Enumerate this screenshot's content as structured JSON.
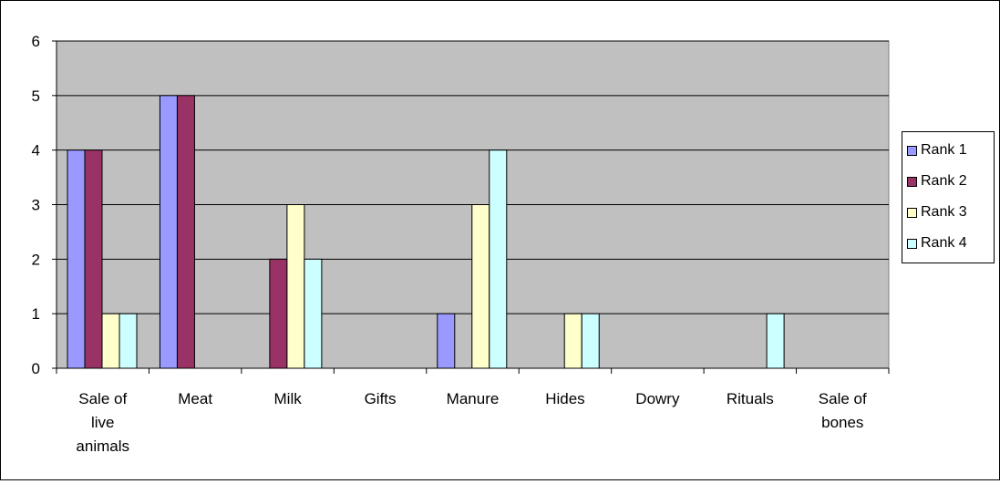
{
  "chart_data": {
    "type": "bar",
    "categories": [
      [
        "Sale of",
        "live",
        "animals"
      ],
      [
        "Meat"
      ],
      [
        "Milk"
      ],
      [
        "Gifts"
      ],
      [
        "Manure"
      ],
      [
        "Hides"
      ],
      [
        "Dowry"
      ],
      [
        "Rituals"
      ],
      [
        "Sale of",
        "bones"
      ]
    ],
    "series": [
      {
        "name": "Rank 1",
        "color": "#9999ff",
        "values": [
          4,
          5,
          0,
          0,
          1,
          0,
          0,
          0,
          0
        ]
      },
      {
        "name": "Rank 2",
        "color": "#993366",
        "values": [
          4,
          5,
          2,
          0,
          0,
          0,
          0,
          0,
          0
        ]
      },
      {
        "name": "Rank 3",
        "color": "#ffffcc",
        "values": [
          1,
          0,
          3,
          0,
          3,
          1,
          0,
          0,
          0
        ]
      },
      {
        "name": "Rank 4",
        "color": "#ccffff",
        "values": [
          1,
          0,
          2,
          0,
          4,
          1,
          0,
          1,
          0
        ]
      }
    ],
    "ylim": [
      0,
      6
    ],
    "yticks": [
      "0",
      "1",
      "2",
      "3",
      "4",
      "5",
      "6"
    ],
    "grid": true,
    "plot_background": "#c0c0c0",
    "legend": "right"
  }
}
